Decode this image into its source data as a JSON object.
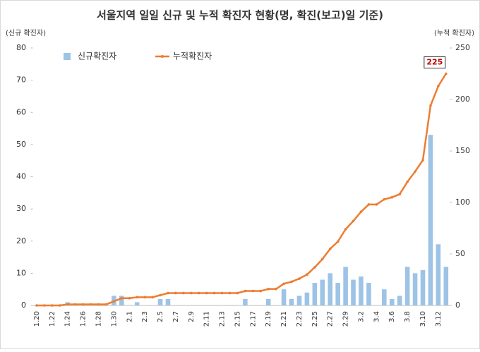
{
  "chart_data": {
    "type": "bar-line",
    "title": "서울지역 일일 신규 및 누적 확진자 현황(명, 확진(보고)일 기준)",
    "y_label": "(신규 확진자)",
    "y2_label": "(누적 확진자)",
    "categories": [
      "1.20",
      null,
      "1.22",
      null,
      "1.24",
      null,
      "1.26",
      null,
      "1.28",
      null,
      "1.30",
      null,
      "2.1",
      null,
      "2.3",
      null,
      "2.5",
      null,
      "2.7",
      null,
      "2.9",
      null,
      "2.11",
      null,
      "2.13",
      null,
      "2.15",
      null,
      "2.17",
      null,
      "2.19",
      null,
      "2.21",
      null,
      "2.23",
      null,
      "2.25",
      null,
      "2.27",
      null,
      "2.29",
      null,
      "3.2",
      null,
      "3.4",
      null,
      "3.6",
      null,
      "3.8",
      null,
      "3.10",
      null,
      "3.12",
      null
    ],
    "series": [
      {
        "name": "신규확진자",
        "color": "#9dc3e6",
        "kind": "bar",
        "axis": "y",
        "values": [
          0,
          0,
          0,
          0,
          1,
          0,
          0,
          0,
          0,
          0,
          3,
          3,
          0,
          1,
          0,
          0,
          2,
          2,
          0,
          0,
          0,
          0,
          0,
          0,
          0,
          0,
          0,
          2,
          0,
          0,
          2,
          0,
          5,
          2,
          3,
          4,
          7,
          8,
          10,
          7,
          12,
          8,
          9,
          7,
          0,
          5,
          2,
          3,
          12,
          10,
          11,
          53,
          19,
          12
        ]
      },
      {
        "name": "누적확진자",
        "color": "#ed7d31",
        "kind": "line",
        "axis": "y2",
        "values": [
          0,
          0,
          0,
          0,
          1,
          1,
          1,
          1,
          1,
          1,
          4,
          7,
          7,
          8,
          8,
          8,
          10,
          12,
          12,
          12,
          12,
          12,
          12,
          12,
          12,
          12,
          12,
          14,
          14,
          14,
          16,
          16,
          21,
          23,
          26,
          30,
          37,
          45,
          55,
          62,
          74,
          82,
          91,
          98,
          98,
          103,
          105,
          108,
          120,
          130,
          141,
          194,
          213,
          225
        ]
      }
    ],
    "ylim": [
      0,
      80
    ],
    "yticks": [
      0,
      10,
      20,
      30,
      40,
      50,
      60,
      70,
      80
    ],
    "y2lim": [
      0,
      250
    ],
    "y2ticks": [
      0,
      50,
      100,
      150,
      200,
      250
    ],
    "grid": false,
    "legend": "top-left"
  }
}
